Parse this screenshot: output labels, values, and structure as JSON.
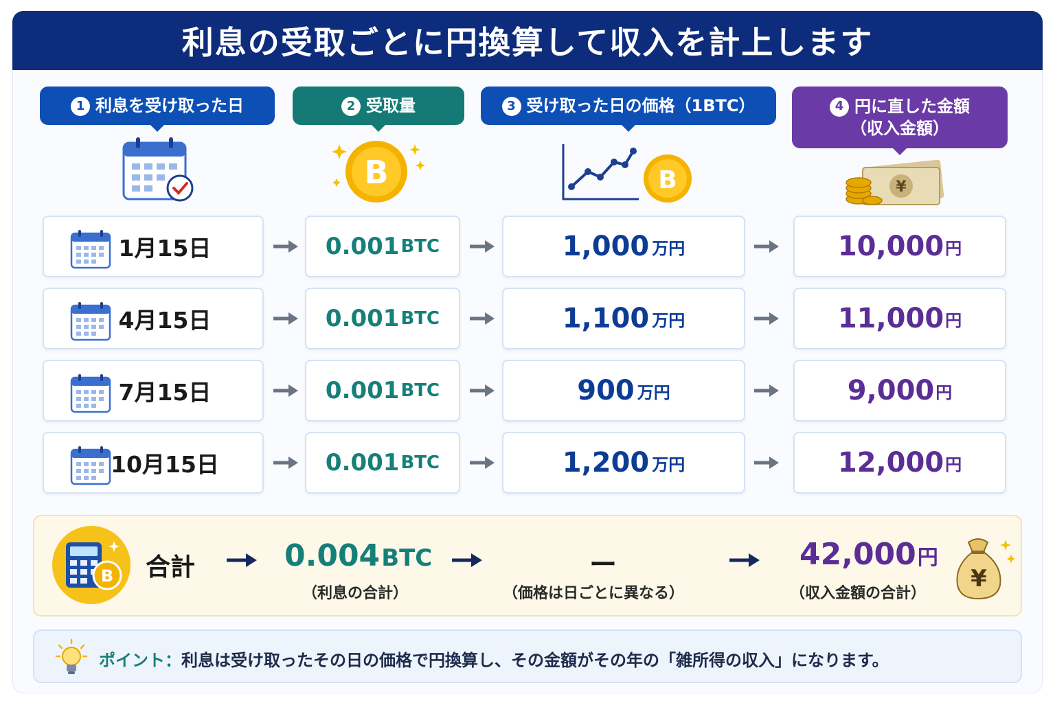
{
  "title": "利息の受取ごとに円換算して収入を計上します",
  "headers": [
    {
      "num": "1",
      "label": "利息を受け取った日"
    },
    {
      "num": "2",
      "label": "受取量"
    },
    {
      "num": "3",
      "label": "受け取った日の価格（1BTC）"
    },
    {
      "num": "4",
      "label": "円に直した金額",
      "label2": "（収入金額）"
    }
  ],
  "rows": [
    {
      "date": "1月15日",
      "btc": "0.001",
      "btc_unit": "BTC",
      "price": "1,000",
      "price_unit": "万円",
      "yen": "10,000",
      "yen_unit": "円"
    },
    {
      "date": "4月15日",
      "btc": "0.001",
      "btc_unit": "BTC",
      "price": "1,100",
      "price_unit": "万円",
      "yen": "11,000",
      "yen_unit": "円"
    },
    {
      "date": "7月15日",
      "btc": "0.001",
      "btc_unit": "BTC",
      "price": "900",
      "price_unit": "万円",
      "yen": "9,000",
      "yen_unit": "円"
    },
    {
      "date": "10月15日",
      "btc": "0.001",
      "btc_unit": "BTC",
      "price": "1,200",
      "price_unit": "万円",
      "yen": "12,000",
      "yen_unit": "円"
    }
  ],
  "total": {
    "label": "合計",
    "btc": "0.004",
    "btc_unit": "BTC",
    "btc_note": "（利息の合計）",
    "price": "ー",
    "price_note": "（価格は日ごとに異なる）",
    "yen": "42,000",
    "yen_unit": "円",
    "yen_note": "（収入金額の合計）"
  },
  "point": {
    "label": "ポイント：",
    "text": "利息は受け取ったその日の価格で円換算し、その金額がその年の「雑所得の収入」になります。"
  },
  "icon_labels": {
    "bitcoin": "B",
    "yen": "¥"
  },
  "colors": {
    "navy": "#0d2c7c",
    "blue": "#0d4fb5",
    "teal": "#157a75",
    "purple": "#6a3ba6",
    "gold": "#f5b301"
  },
  "icons": [
    "calendar-check-icon",
    "bitcoin-coin-icon",
    "line-chart-icon",
    "yen-banknote-icon",
    "calculator-icon",
    "money-bag-icon",
    "lightbulb-icon",
    "arrow-right-icon"
  ]
}
